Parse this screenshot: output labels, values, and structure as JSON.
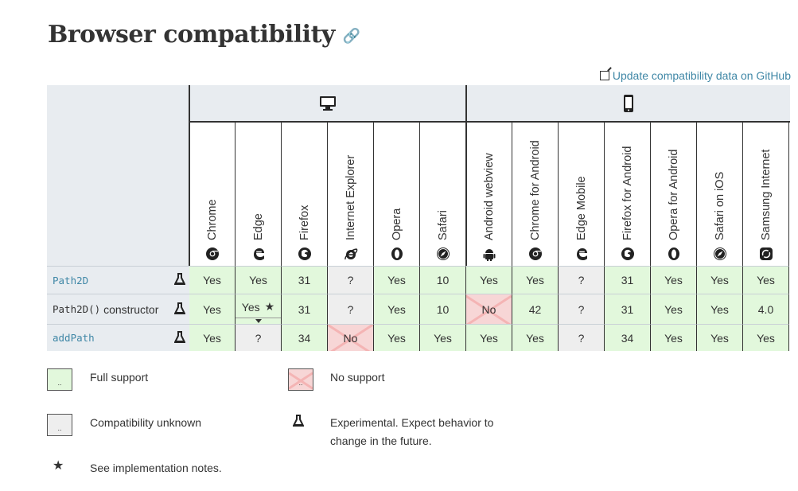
{
  "title": "Browser compatibility",
  "github_link": "Update compatibility data on GitHub",
  "platforms": [
    "desktop",
    "mobile"
  ],
  "browsers": [
    {
      "name": "Chrome",
      "icon": "chrome-icon"
    },
    {
      "name": "Edge",
      "icon": "edge-icon"
    },
    {
      "name": "Firefox",
      "icon": "firefox-icon"
    },
    {
      "name": "Internet Explorer",
      "icon": "ie-icon"
    },
    {
      "name": "Opera",
      "icon": "opera-icon"
    },
    {
      "name": "Safari",
      "icon": "safari-icon"
    },
    {
      "name": "Android webview",
      "icon": "android-icon"
    },
    {
      "name": "Chrome for Android",
      "icon": "chrome-icon"
    },
    {
      "name": "Edge Mobile",
      "icon": "edge-icon"
    },
    {
      "name": "Firefox for Android",
      "icon": "firefox-icon"
    },
    {
      "name": "Opera for Android",
      "icon": "opera-icon"
    },
    {
      "name": "Safari on iOS",
      "icon": "safari-icon"
    },
    {
      "name": "Samsung Internet",
      "icon": "samsung-icon"
    }
  ],
  "features": [
    {
      "name": "Path2D",
      "suffix": "",
      "is_link": true,
      "values": [
        "Yes",
        "Yes",
        "31",
        "?",
        "Yes",
        "10",
        "Yes",
        "Yes",
        "?",
        "31",
        "Yes",
        "Yes",
        "Yes"
      ]
    },
    {
      "name": "Path2D()",
      "suffix": " constructor",
      "is_link": false,
      "values": [
        "Yes",
        "Yes",
        "31",
        "?",
        "Yes",
        "10",
        "No",
        "42",
        "?",
        "31",
        "Yes",
        "Yes",
        "4.0"
      ]
    },
    {
      "name": "addPath",
      "suffix": "",
      "is_link": true,
      "values": [
        "Yes",
        "?",
        "34",
        "No",
        "Yes",
        "Yes",
        "Yes",
        "Yes",
        "?",
        "34",
        "Yes",
        "Yes",
        "Yes"
      ]
    }
  ],
  "legend": {
    "full_support": "Full support",
    "no_support": "No support",
    "unknown": "Compatibility unknown",
    "experimental": "Experimental. Expect behavior to change in the future.",
    "notes": "See implementation notes.",
    "box_mark": "..",
    "star": "★"
  },
  "colors": {
    "yes": "#e2f8dc",
    "no": "#f7d6d6",
    "unknown": "#eeeeee",
    "link": "#3f87a6"
  }
}
